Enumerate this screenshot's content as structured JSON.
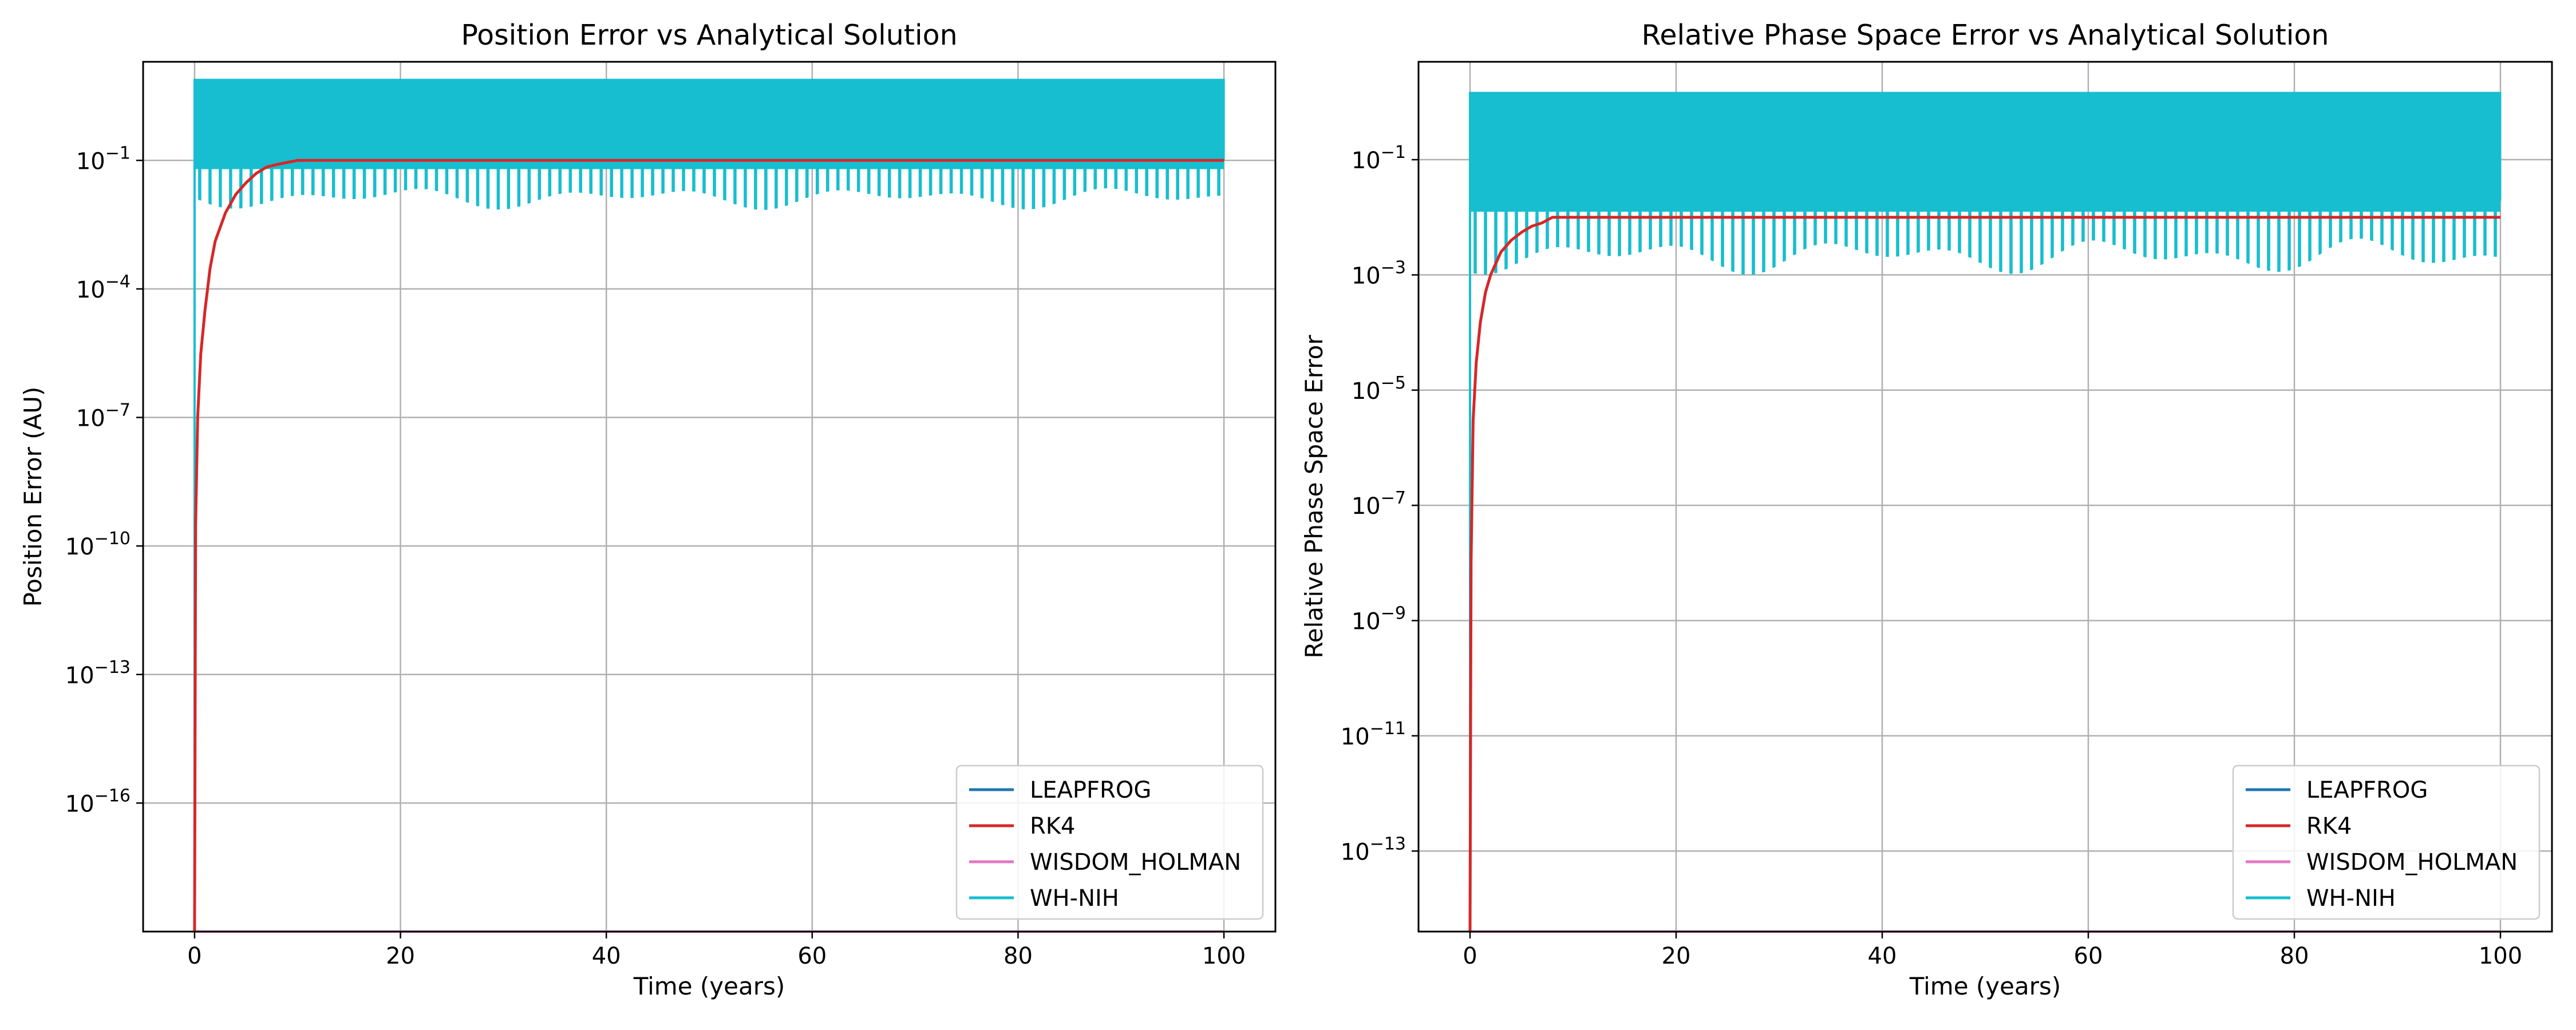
{
  "chart_data": [
    {
      "type": "line",
      "title": "Position Error vs Analytical Solution",
      "xlabel": "Time (years)",
      "ylabel": "Position Error (AU)",
      "yscale": "log",
      "xlim": [
        -5,
        105
      ],
      "ylim": [
        1e-19,
        20
      ],
      "xticks": [
        0,
        20,
        40,
        60,
        80,
        100
      ],
      "yticks": [
        {
          "value": 0.1,
          "label": "10^{-1}"
        },
        {
          "value": 0.0001,
          "label": "10^{-4}"
        },
        {
          "value": 1e-07,
          "label": "10^{-7}"
        },
        {
          "value": 1e-10,
          "label": "10^{-10}"
        },
        {
          "value": 1e-13,
          "label": "10^{-13}"
        },
        {
          "value": 1e-16,
          "label": "10^{-16}"
        }
      ],
      "grid": true,
      "legend_position": "lower-right",
      "series": [
        {
          "name": "LEAPFROG",
          "color": "#1f77b4",
          "x": [
            0,
            100
          ],
          "y": [
            1e-19,
            1e-19
          ]
        },
        {
          "name": "RK4",
          "color": "#d62728",
          "x": [
            0,
            0.1,
            0.3,
            0.6,
            1,
            1.5,
            2,
            3,
            4,
            5,
            6,
            7,
            8,
            10,
            14,
            20,
            30,
            40,
            60,
            80,
            100
          ],
          "y": [
            1e-19,
            3e-10,
            1e-07,
            3e-06,
            3e-05,
            0.0003,
            0.0013,
            0.006,
            0.016,
            0.03,
            0.05,
            0.07,
            0.08,
            0.1,
            0.1,
            0.1,
            0.1,
            0.1,
            0.1,
            0.1,
            0.1
          ]
        },
        {
          "name": "WISDOM_HOLMAN",
          "color": "#e377c2",
          "x": [
            0,
            100
          ],
          "y": [
            1e-19,
            1e-19
          ]
        },
        {
          "name": "WH-NIH",
          "color": "#17becf",
          "x_start": 0,
          "x_end": 100,
          "y_max": 8,
          "y_min_typical": 0.05,
          "y_min_deepest": 0.007,
          "y_at_t0": 1e-19,
          "dip_count": 100
        }
      ]
    },
    {
      "type": "line",
      "title": "Relative Phase Space Error vs Analytical Solution",
      "xlabel": "Time (years)",
      "ylabel": "Relative Phase Space Error",
      "yscale": "log",
      "xlim": [
        -5,
        105
      ],
      "ylim": [
        4e-15,
        5
      ],
      "xticks": [
        0,
        20,
        40,
        60,
        80,
        100
      ],
      "yticks": [
        {
          "value": 0.1,
          "label": "10^{-1}"
        },
        {
          "value": 0.001,
          "label": "10^{-3}"
        },
        {
          "value": 1e-05,
          "label": "10^{-5}"
        },
        {
          "value": 1e-07,
          "label": "10^{-7}"
        },
        {
          "value": 1e-09,
          "label": "10^{-9}"
        },
        {
          "value": 1e-11,
          "label": "10^{-11}"
        },
        {
          "value": 1e-13,
          "label": "10^{-13}"
        }
      ],
      "grid": true,
      "legend_position": "lower-right",
      "series": [
        {
          "name": "LEAPFROG",
          "color": "#1f77b4",
          "x": [
            0,
            100
          ],
          "y": [
            4e-15,
            4e-15
          ]
        },
        {
          "name": "RK4",
          "color": "#d62728",
          "x": [
            0,
            0.1,
            0.3,
            0.6,
            1,
            1.5,
            2,
            3,
            4,
            5,
            6,
            7,
            8,
            10,
            14,
            20,
            30,
            40,
            60,
            80,
            100
          ],
          "y": [
            4e-15,
            1e-08,
            3e-06,
            3e-05,
            0.00015,
            0.0005,
            0.001,
            0.0025,
            0.004,
            0.0055,
            0.007,
            0.008,
            0.01,
            0.01,
            0.01,
            0.01,
            0.01,
            0.01,
            0.01,
            0.01,
            0.01
          ]
        },
        {
          "name": "WISDOM_HOLMAN",
          "color": "#e377c2",
          "x": [
            0,
            100
          ],
          "y": [
            4e-15,
            4e-15
          ]
        },
        {
          "name": "WH-NIH",
          "color": "#17becf",
          "x_start": 0,
          "x_end": 100,
          "y_max": 1.5,
          "y_min_typical": 0.01,
          "y_min_deepest": 0.001,
          "y_at_t0": 4e-15,
          "dip_count": 100
        }
      ]
    }
  ]
}
